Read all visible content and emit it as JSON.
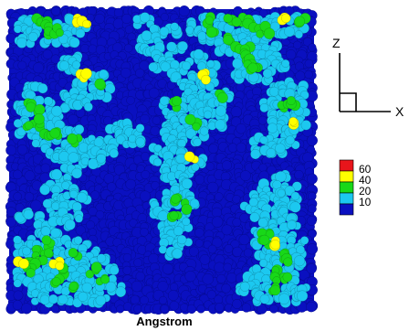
{
  "chart_data": {
    "type": "heatmap",
    "title": "",
    "xlabel": "Angstrom",
    "ylabel": "",
    "colormap": {
      "levels": [
        {
          "label": "60",
          "color": "#e8151b"
        },
        {
          "label": "40",
          "color": "#ffff00"
        },
        {
          "label": "20",
          "color": "#18d818"
        },
        {
          "label": "10",
          "color": "#1cc8f0"
        },
        {
          "label": "",
          "color": "#0a10c0"
        }
      ]
    },
    "grid_cols": 34,
    "grid_rows": 33,
    "value_grid": [
      "BBBBBBBBBBBBBBBBBBBBBBBBBBBBBBBBBB",
      "BCCGGCCYYBBBBBCCBBBBCCGCGGGCCCYCGB",
      "BCCCGGCCCBBBBBBBCCCBCCGCCCCGGCCCCB",
      "BCCBCCCCBBBBBBCCCBBBBCCCGCCCCBBBBB",
      "BBBBBBBBBBBBBBCCCBCCBBBCCGGCCCBBBB",
      "BBBBBBCCBBBBBBBBCCBBCCBBBCGCCCBBBB",
      "BBBBBBCCBBBBBBBBCCCCBCCBBCGGCCCBBB",
      "BBBBBBBBYCCBBBBBBBCBCYCBBCCCCBBBBB",
      "BBCCBBBCCCGCBBBBBBBCCCCBBBBBBCCCCB",
      "BBCBBBCCCCCBBBBBBBBCCCCGCBBBBCCCCB",
      "BCGCCBCCCBBBBBBBBCGCCCCCBBBBCCGGCB",
      "BCCGCCBBBBBBBBBBBCCCCCCCBBBBBCCCCB",
      "BCGGCCBBBBBBCCBBBCCCGCCCBBBBBCCYCB",
      "BCCCGGCCBBBCCCCBBCCCCCBBBBBBBCCCBB",
      "BBBCCCCGCCCCCCCBBCCCCBBBBBBCCCCCBB",
      "BBBBCCCCCCCCBBBBCCCCBBBBBBBCCCCBBB",
      "BBBBBCCCCCCBBBBBCCCCYCBBBBBBBBBBBB",
      "BBBBBBCCBBBBBBBBBCCCCBBBBBBBBBBBBB",
      "BBBBBCCBBBBBBBBBBCCCBBBBBBBBBCCBBB",
      "BBBBCCCCBBBBBBBBBBCCBBBBBBBBCCCCBB",
      "BBBBBCCCCBBBBBBBBCGCCBBBBBBCCCCCBB",
      "BBBBCCCCBBBBBBBBCCCGCBBBBBCCCCCCBB",
      "BCCCBCCCBBBBBBBBCCGCBBBBBBBCCCCCBB",
      "BBBCCCCBBBBBBBBBBCCCBBBBBBBBCCCCBB",
      "BBBCCCBBBBBBBBBBBCCBBBBBBBBCGCCCBB",
      "BCCCGCCCCBBBBBBBBCCCBBBBBBBCGYCCCB",
      "BCCGGCCGCCBBBBBBBCCBBBBBBBBCCCGCCB",
      "BYGGCYCCCCCBBBBBBBBBBBBBBBBBCCGCCB",
      "BCGCCCGCCGCCBBBBBBBBBBBBBBBCCGCCBB",
      "BCCCCGCCCCGCBBBBBBBBBBBBBBCCCGGCBB",
      "BBCCCCCGCCCCCBBBBBBBBBBBBCCCCGCCCB",
      "BBBCCCCCCCCBBBBBBBBBBBBBBBBCCCCCCB",
      "BBBBBBBBBBBBBBBBBBBBBBBBBBBBBBBBBB"
    ],
    "value_codes": {
      "B": "below 10",
      "C": "10",
      "G": "20",
      "Y": "40",
      "R": "60"
    }
  },
  "triad": {
    "z_label": "Z",
    "x_label": "X"
  }
}
